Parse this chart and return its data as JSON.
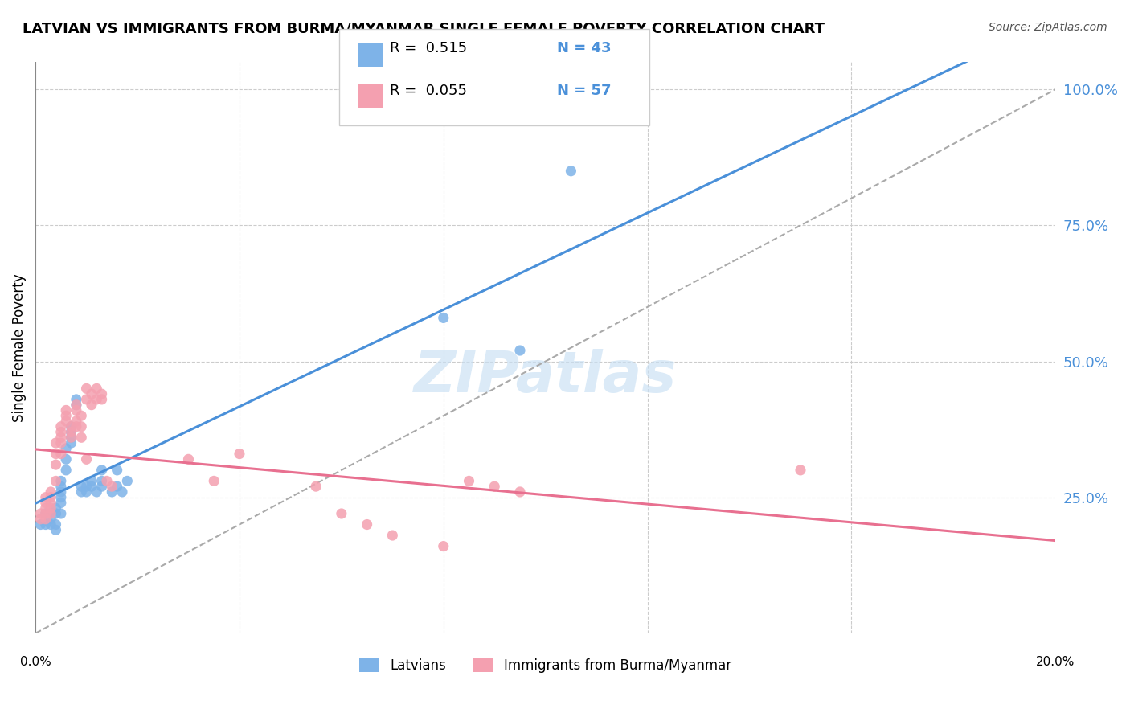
{
  "title": "LATVIAN VS IMMIGRANTS FROM BURMA/MYANMAR SINGLE FEMALE POVERTY CORRELATION CHART",
  "source": "Source: ZipAtlas.com",
  "ylabel": "Single Female Poverty",
  "ylabel_right_ticks": [
    "100.0%",
    "75.0%",
    "50.0%",
    "25.0%"
  ],
  "ylabel_right_vals": [
    1.0,
    0.75,
    0.5,
    0.25
  ],
  "watermark": "ZIPatlas",
  "legend_r1": "R =  0.515",
  "legend_n1": "N = 43",
  "legend_r2": "R =  0.055",
  "legend_n2": "N = 57",
  "color_latvian": "#7EB3E8",
  "color_burma": "#F4A0B0",
  "color_latvian_line": "#4A90D9",
  "color_burma_line": "#E87090",
  "color_dashed_line": "#AAAAAA",
  "latvian_x": [
    0.001,
    0.002,
    0.002,
    0.003,
    0.003,
    0.003,
    0.004,
    0.004,
    0.004,
    0.004,
    0.005,
    0.005,
    0.005,
    0.005,
    0.005,
    0.005,
    0.006,
    0.006,
    0.006,
    0.007,
    0.007,
    0.007,
    0.007,
    0.008,
    0.008,
    0.009,
    0.009,
    0.01,
    0.01,
    0.011,
    0.011,
    0.012,
    0.013,
    0.013,
    0.013,
    0.015,
    0.016,
    0.016,
    0.017,
    0.018,
    0.08,
    0.095,
    0.105
  ],
  "latvian_y": [
    0.2,
    0.22,
    0.2,
    0.22,
    0.21,
    0.2,
    0.23,
    0.22,
    0.2,
    0.19,
    0.28,
    0.27,
    0.26,
    0.25,
    0.24,
    0.22,
    0.34,
    0.32,
    0.3,
    0.38,
    0.37,
    0.36,
    0.35,
    0.43,
    0.42,
    0.27,
    0.26,
    0.27,
    0.26,
    0.28,
    0.27,
    0.26,
    0.3,
    0.28,
    0.27,
    0.26,
    0.3,
    0.27,
    0.26,
    0.28,
    0.58,
    0.52,
    0.85
  ],
  "burma_x": [
    0.001,
    0.001,
    0.002,
    0.002,
    0.002,
    0.002,
    0.002,
    0.003,
    0.003,
    0.003,
    0.003,
    0.003,
    0.004,
    0.004,
    0.004,
    0.004,
    0.005,
    0.005,
    0.005,
    0.005,
    0.005,
    0.006,
    0.006,
    0.006,
    0.007,
    0.007,
    0.007,
    0.008,
    0.008,
    0.008,
    0.008,
    0.009,
    0.009,
    0.009,
    0.01,
    0.01,
    0.01,
    0.011,
    0.011,
    0.012,
    0.012,
    0.013,
    0.013,
    0.014,
    0.015,
    0.03,
    0.035,
    0.04,
    0.055,
    0.06,
    0.065,
    0.07,
    0.08,
    0.085,
    0.09,
    0.095,
    0.15
  ],
  "burma_y": [
    0.22,
    0.21,
    0.25,
    0.24,
    0.23,
    0.22,
    0.21,
    0.26,
    0.25,
    0.24,
    0.23,
    0.22,
    0.35,
    0.33,
    0.31,
    0.28,
    0.38,
    0.37,
    0.36,
    0.35,
    0.33,
    0.41,
    0.4,
    0.39,
    0.38,
    0.37,
    0.36,
    0.42,
    0.41,
    0.39,
    0.38,
    0.4,
    0.38,
    0.36,
    0.45,
    0.43,
    0.32,
    0.44,
    0.42,
    0.45,
    0.43,
    0.44,
    0.43,
    0.28,
    0.27,
    0.32,
    0.28,
    0.33,
    0.27,
    0.22,
    0.2,
    0.18,
    0.16,
    0.28,
    0.27,
    0.26,
    0.3
  ],
  "xlim": [
    0.0,
    0.2
  ],
  "ylim": [
    0.0,
    1.05
  ],
  "figsize": [
    14.06,
    8.92
  ],
  "dpi": 100
}
